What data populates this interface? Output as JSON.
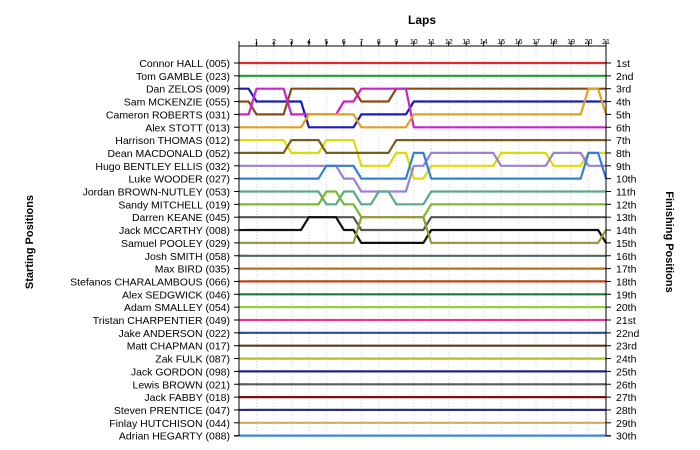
{
  "chart_data": {
    "type": "line",
    "title": "Laps",
    "ylabel_left": "Starting Positions",
    "ylabel_right": "Finishing Positions",
    "laps": [
      1,
      2,
      3,
      4,
      5,
      6,
      7,
      8,
      9,
      10,
      11,
      12,
      13,
      14,
      15,
      16,
      17,
      18,
      19,
      20,
      21
    ],
    "x_ticks": [
      "1",
      "2",
      "3",
      "4",
      "5",
      "6",
      "7",
      "8",
      "9",
      "10",
      "11",
      "12",
      "13",
      "14",
      "15",
      "16",
      "17",
      "18",
      "19",
      "20",
      "21"
    ],
    "drivers": [
      "Connor HALL (005)",
      "Tom GAMBLE (023)",
      "Dan ZELOS (009)",
      "Sam MCKENZIE (055)",
      "Cameron ROBERTS (031)",
      "Alex STOTT (013)",
      "Harrison THOMAS (012)",
      "Dean MACDONALD (052)",
      "Hugo BENTLEY ELLIS (032)",
      "Luke WOODER (027)",
      "Jordan BROWN-NUTLEY (053)",
      "Sandy MITCHELL (019)",
      "Darren KEANE (045)",
      "Jack MCCARTHY (008)",
      "Samuel POOLEY (029)",
      "Josh SMITH (058)",
      "Max BIRD (035)",
      "Stefanos CHARALAMBOUS (066)",
      "Alex SEDGWICK (046)",
      "Adam SMALLEY (054)",
      "Tristan CHARPENTIER (049)",
      "Jake ANDERSON (022)",
      "Matt CHAPMAN (017)",
      "Zak FULK (087)",
      "Jack GORDON (098)",
      "Lewis BROWN (021)",
      "Jack FABBY (018)",
      "Steven PRENTICE (047)",
      "Finlay HUTCHISON (044)",
      "Adrian HEGARTY (088)"
    ],
    "finishing_positions": [
      "1st",
      "2nd",
      "3rd",
      "4th",
      "5th",
      "6th",
      "7th",
      "8th",
      "9th",
      "10th",
      "11th",
      "12th",
      "13th",
      "14th",
      "15th",
      "16th",
      "17th",
      "18th",
      "19th",
      "20th",
      "21st",
      "22nd",
      "23rd",
      "24th",
      "25th",
      "26th",
      "27th",
      "28th",
      "29th",
      "30th"
    ],
    "series": [
      {
        "color": "#e8252a",
        "positions": [
          1,
          1,
          1,
          1,
          1,
          1,
          1,
          1,
          1,
          1,
          1,
          1,
          1,
          1,
          1,
          1,
          1,
          1,
          1,
          1,
          1,
          1
        ]
      },
      {
        "color": "#1fa02a",
        "positions": [
          2,
          2,
          2,
          2,
          2,
          2,
          2,
          2,
          2,
          2,
          2,
          2,
          2,
          2,
          2,
          2,
          2,
          2,
          2,
          2,
          2,
          2
        ]
      },
      {
        "color": "#1b1bb5",
        "positions": [
          3,
          4,
          4,
          4,
          6,
          6,
          6,
          5,
          5,
          5,
          4,
          4,
          4,
          4,
          4,
          4,
          4,
          4,
          4,
          4,
          4,
          4
        ]
      },
      {
        "color": "#8b4a14",
        "positions": [
          4,
          5,
          5,
          3,
          3,
          3,
          3,
          4,
          4,
          3,
          3,
          3,
          3,
          3,
          3,
          3,
          3,
          3,
          3,
          3,
          3,
          3
        ]
      },
      {
        "color": "#cc22cc",
        "positions": [
          5,
          3,
          3,
          5,
          5,
          5,
          4,
          3,
          3,
          3,
          6,
          6,
          6,
          6,
          6,
          6,
          6,
          6,
          6,
          6,
          6,
          6
        ]
      },
      {
        "color": "#e0a020",
        "positions": [
          6,
          6,
          6,
          6,
          5,
          5,
          5,
          6,
          6,
          6,
          5,
          5,
          5,
          5,
          5,
          5,
          5,
          5,
          5,
          5,
          3,
          5
        ]
      },
      {
        "color": "#dddd00",
        "positions": [
          7,
          7,
          7,
          8,
          8,
          7,
          7,
          9,
          9,
          8,
          10,
          9,
          9,
          9,
          9,
          8,
          8,
          8,
          9,
          9,
          8,
          8
        ]
      },
      {
        "color": "#7a5c1e",
        "positions": [
          8,
          8,
          8,
          7,
          7,
          8,
          8,
          8,
          8,
          7,
          7,
          7,
          7,
          7,
          7,
          7,
          7,
          7,
          7,
          7,
          7,
          7
        ]
      },
      {
        "color": "#9a80d8",
        "positions": [
          9,
          9,
          9,
          9,
          9,
          9,
          10,
          11,
          11,
          11,
          9,
          8,
          8,
          8,
          8,
          9,
          9,
          9,
          8,
          8,
          9,
          9
        ]
      },
      {
        "color": "#3080d8",
        "positions": [
          10,
          10,
          10,
          10,
          10,
          9,
          9,
          10,
          10,
          10,
          8,
          10,
          10,
          10,
          10,
          10,
          10,
          10,
          10,
          10,
          8,
          10
        ]
      },
      {
        "color": "#5aaa88",
        "positions": [
          11,
          11,
          11,
          11,
          11,
          12,
          11,
          12,
          11,
          12,
          12,
          11,
          11,
          11,
          11,
          11,
          11,
          11,
          11,
          11,
          11,
          11
        ]
      },
      {
        "color": "#7ab830",
        "positions": [
          12,
          12,
          12,
          12,
          12,
          11,
          12,
          13,
          13,
          13,
          13,
          12,
          12,
          12,
          12,
          12,
          12,
          12,
          12,
          12,
          12,
          12
        ]
      },
      {
        "color": "#555555",
        "positions": [
          13,
          13,
          13,
          13,
          13,
          13,
          13,
          14,
          14,
          14,
          14,
          13,
          13,
          13,
          13,
          13,
          13,
          13,
          13,
          13,
          13,
          13
        ]
      },
      {
        "color": "#101010",
        "positions": [
          14,
          14,
          14,
          14,
          13,
          13,
          14,
          15,
          15,
          15,
          15,
          14,
          14,
          14,
          14,
          14,
          14,
          14,
          14,
          14,
          14,
          15
        ]
      },
      {
        "color": "#9a9a3a",
        "positions": [
          15,
          15,
          15,
          15,
          15,
          15,
          15,
          13,
          13,
          13,
          13,
          15,
          15,
          15,
          15,
          15,
          15,
          15,
          15,
          15,
          15,
          14
        ]
      },
      {
        "color": "#4a6a6a",
        "positions": [
          16,
          16,
          16,
          16,
          16,
          16,
          16,
          16,
          16,
          16,
          16,
          16,
          16,
          16,
          16,
          16,
          16,
          16,
          16,
          16,
          16,
          16
        ]
      },
      {
        "color": "#b07020",
        "positions": [
          17,
          17,
          17,
          17,
          17,
          17,
          17,
          17,
          17,
          17,
          17,
          17,
          17,
          17,
          17,
          17,
          17,
          17,
          17,
          17,
          17,
          17
        ]
      },
      {
        "color": "#c04010",
        "positions": [
          18,
          18,
          18,
          18,
          18,
          18,
          18,
          18,
          18,
          18,
          18,
          18,
          18,
          18,
          18,
          18,
          18,
          18,
          18,
          18,
          18,
          18
        ]
      },
      {
        "color": "#1e7a2e",
        "positions": [
          19,
          19,
          19,
          19,
          19,
          19,
          19,
          19,
          19,
          19,
          19,
          19,
          19,
          19,
          19,
          19,
          19,
          19,
          19,
          19,
          19,
          19
        ]
      },
      {
        "color": "#90d040",
        "positions": [
          20,
          20,
          20,
          20,
          20,
          20,
          20,
          20,
          20,
          20,
          20,
          20,
          20,
          20,
          20,
          20,
          20,
          20,
          20,
          20,
          20,
          20
        ]
      },
      {
        "color": "#ee3399",
        "positions": [
          21,
          21,
          21,
          21,
          21,
          21,
          21,
          21,
          21,
          21,
          21,
          21,
          21,
          21,
          21,
          21,
          21,
          21,
          21,
          21,
          21,
          21
        ]
      },
      {
        "color": "#2a4a9a",
        "positions": [
          22,
          22,
          22,
          22,
          22,
          22,
          22,
          22,
          22,
          22,
          22,
          22,
          22,
          22,
          22,
          22,
          22,
          22,
          22,
          22,
          22,
          22
        ]
      },
      {
        "color": "#5a3a1a",
        "positions": [
          23,
          23,
          23,
          23,
          23,
          23,
          23,
          23,
          23,
          23,
          23,
          23,
          23,
          23,
          23,
          23,
          23,
          23,
          23,
          23,
          23,
          23
        ]
      },
      {
        "color": "#b0c020",
        "positions": [
          24,
          24,
          24,
          24,
          24,
          24,
          24,
          24,
          24,
          24,
          24,
          24,
          24,
          24,
          24,
          24,
          24,
          24,
          24,
          24,
          24,
          24
        ]
      },
      {
        "color": "#1a2a7a",
        "positions": [
          25,
          25,
          25,
          25,
          25,
          25,
          25,
          25,
          25,
          25,
          25,
          25,
          25,
          25,
          25,
          25,
          25,
          25,
          25,
          25,
          25,
          25
        ]
      },
      {
        "color": "#5a5a5a",
        "positions": [
          26,
          26,
          26,
          26,
          26,
          26,
          26,
          26,
          26,
          26,
          26,
          26,
          26,
          26,
          26,
          26,
          26,
          26,
          26,
          26,
          26,
          26
        ]
      },
      {
        "color": "#7a1010",
        "positions": [
          27,
          27,
          27,
          27,
          27,
          27,
          27,
          27,
          27,
          27,
          27,
          27,
          27,
          27,
          27,
          27,
          27,
          27,
          27,
          27,
          27,
          27
        ]
      },
      {
        "color": "#2a2a8a",
        "positions": [
          28,
          28,
          28,
          28,
          28,
          28,
          28,
          28,
          28,
          28,
          28,
          28,
          28,
          28,
          28,
          28,
          28,
          28,
          28,
          28,
          28,
          28
        ]
      },
      {
        "color": "#d8a860",
        "positions": [
          29,
          29,
          29,
          29,
          29,
          29,
          29,
          29,
          29,
          29,
          29,
          29,
          29,
          29,
          29,
          29,
          29,
          29,
          29,
          29,
          29,
          29
        ]
      },
      {
        "color": "#3a8ad8",
        "positions": [
          30,
          30,
          30,
          30,
          30,
          30,
          30,
          30,
          30,
          30,
          30,
          30,
          30,
          30,
          30,
          30,
          30,
          30,
          30,
          30,
          30,
          30
        ]
      }
    ]
  }
}
